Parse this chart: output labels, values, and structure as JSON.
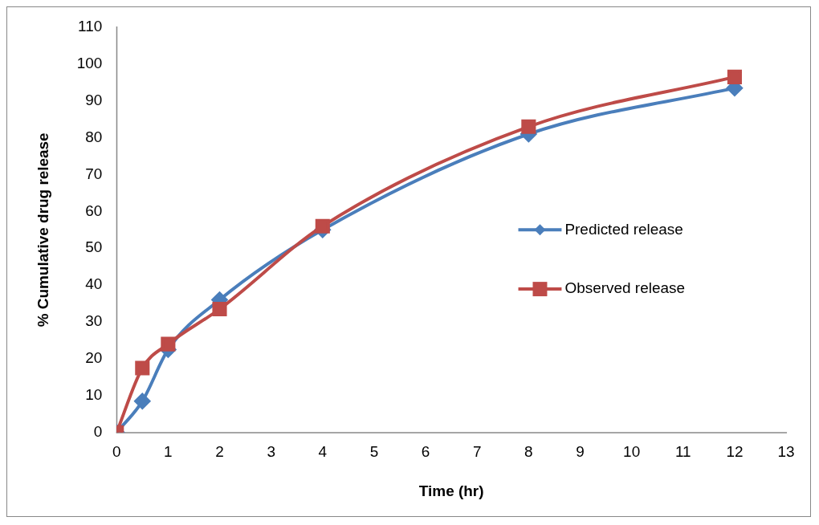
{
  "chart_data": {
    "type": "line",
    "xlabel": "Time (hr)",
    "ylabel": "% Cumulative drug release",
    "xlim": [
      0,
      13
    ],
    "xticks": [
      0,
      1,
      2,
      3,
      4,
      5,
      6,
      7,
      8,
      9,
      10,
      11,
      12,
      13
    ],
    "ylim": [
      0,
      110
    ],
    "yticks": [
      0,
      10,
      20,
      30,
      40,
      50,
      60,
      70,
      80,
      90,
      100,
      110
    ],
    "grid": false,
    "legend": "right",
    "x": [
      0,
      0.5,
      1,
      2,
      4,
      8,
      12
    ],
    "series": [
      {
        "name": "Predicted release",
        "color": "#4a7ebb",
        "values": [
          0,
          8.5,
          22.5,
          36,
          55,
          81,
          93.5
        ],
        "marker": "diamond"
      },
      {
        "name": "Observed release",
        "color": "#be4b48",
        "values": [
          0,
          17.5,
          24,
          33.5,
          56,
          83,
          96.5
        ],
        "marker": "square"
      }
    ]
  }
}
